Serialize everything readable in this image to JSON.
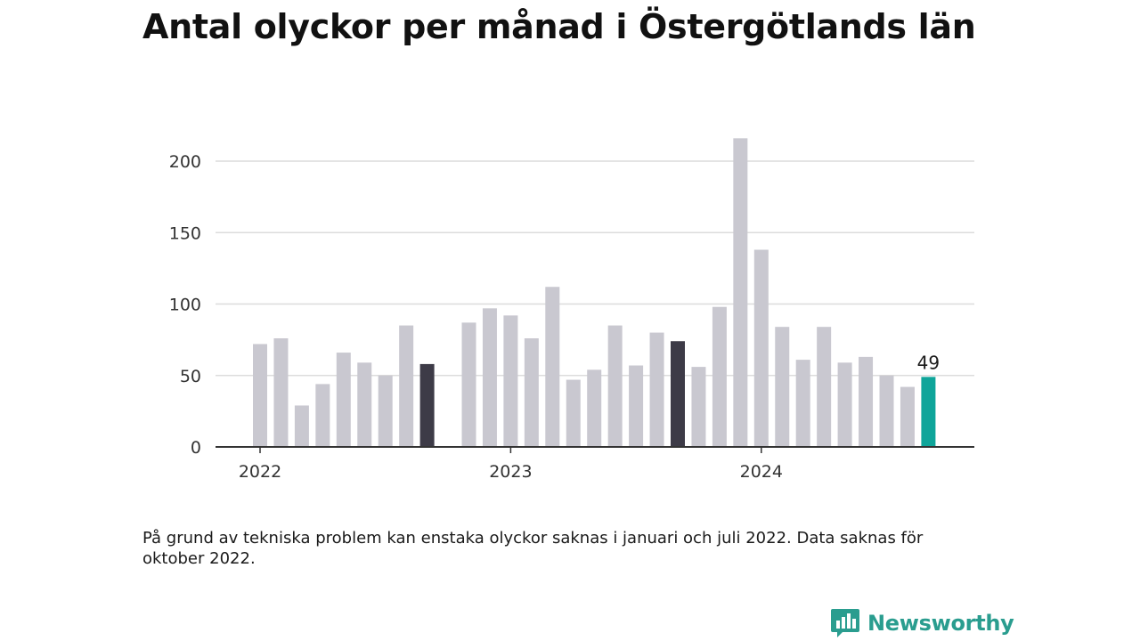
{
  "chart_data": {
    "type": "bar",
    "title": "Antal olyckor per månad i Östergötlands län",
    "xlabel": "",
    "ylabel": "",
    "ylim": [
      0,
      225
    ],
    "yticks": [
      0,
      50,
      100,
      150,
      200
    ],
    "x_tick_labels": [
      {
        "label": "2022",
        "month": "2022-01"
      },
      {
        "label": "2023",
        "month": "2023-01"
      },
      {
        "label": "2024",
        "month": "2024-01"
      }
    ],
    "grid": true,
    "legend": "none",
    "months": [
      "2022-01",
      "2022-02",
      "2022-03",
      "2022-04",
      "2022-05",
      "2022-06",
      "2022-07",
      "2022-08",
      "2022-09",
      "2022-10",
      "2022-11",
      "2022-12",
      "2023-01",
      "2023-02",
      "2023-03",
      "2023-04",
      "2023-05",
      "2023-06",
      "2023-07",
      "2023-08",
      "2023-09",
      "2023-10",
      "2023-11",
      "2023-12",
      "2024-01",
      "2024-02",
      "2024-03",
      "2024-04",
      "2024-05",
      "2024-06",
      "2024-07",
      "2024-08",
      "2024-09"
    ],
    "values": [
      72,
      76,
      29,
      44,
      66,
      59,
      50,
      85,
      58,
      null,
      87,
      97,
      92,
      76,
      112,
      47,
      54,
      85,
      57,
      80,
      74,
      56,
      98,
      216,
      138,
      84,
      61,
      84,
      59,
      63,
      50,
      42,
      49
    ],
    "highlight": {
      "2022-09": "dark",
      "2023-09": "dark",
      "2024-09": "accent"
    },
    "annotations": [
      {
        "month": "2024-09",
        "text": "49"
      }
    ],
    "colors": {
      "bar": "#c9c8d0",
      "dark": "#3d3b47",
      "accent": "#0fa59a",
      "grid": "#dcdcdc",
      "axis": "#333333"
    }
  },
  "note": "På grund av tekniska problem kan enstaka olyckor saknas i januari och juli 2022. Data saknas för oktober 2022.",
  "brand": {
    "name": "Newsworthy",
    "icon": "newsworthy-logo-icon",
    "color": "#2a9d8f"
  }
}
